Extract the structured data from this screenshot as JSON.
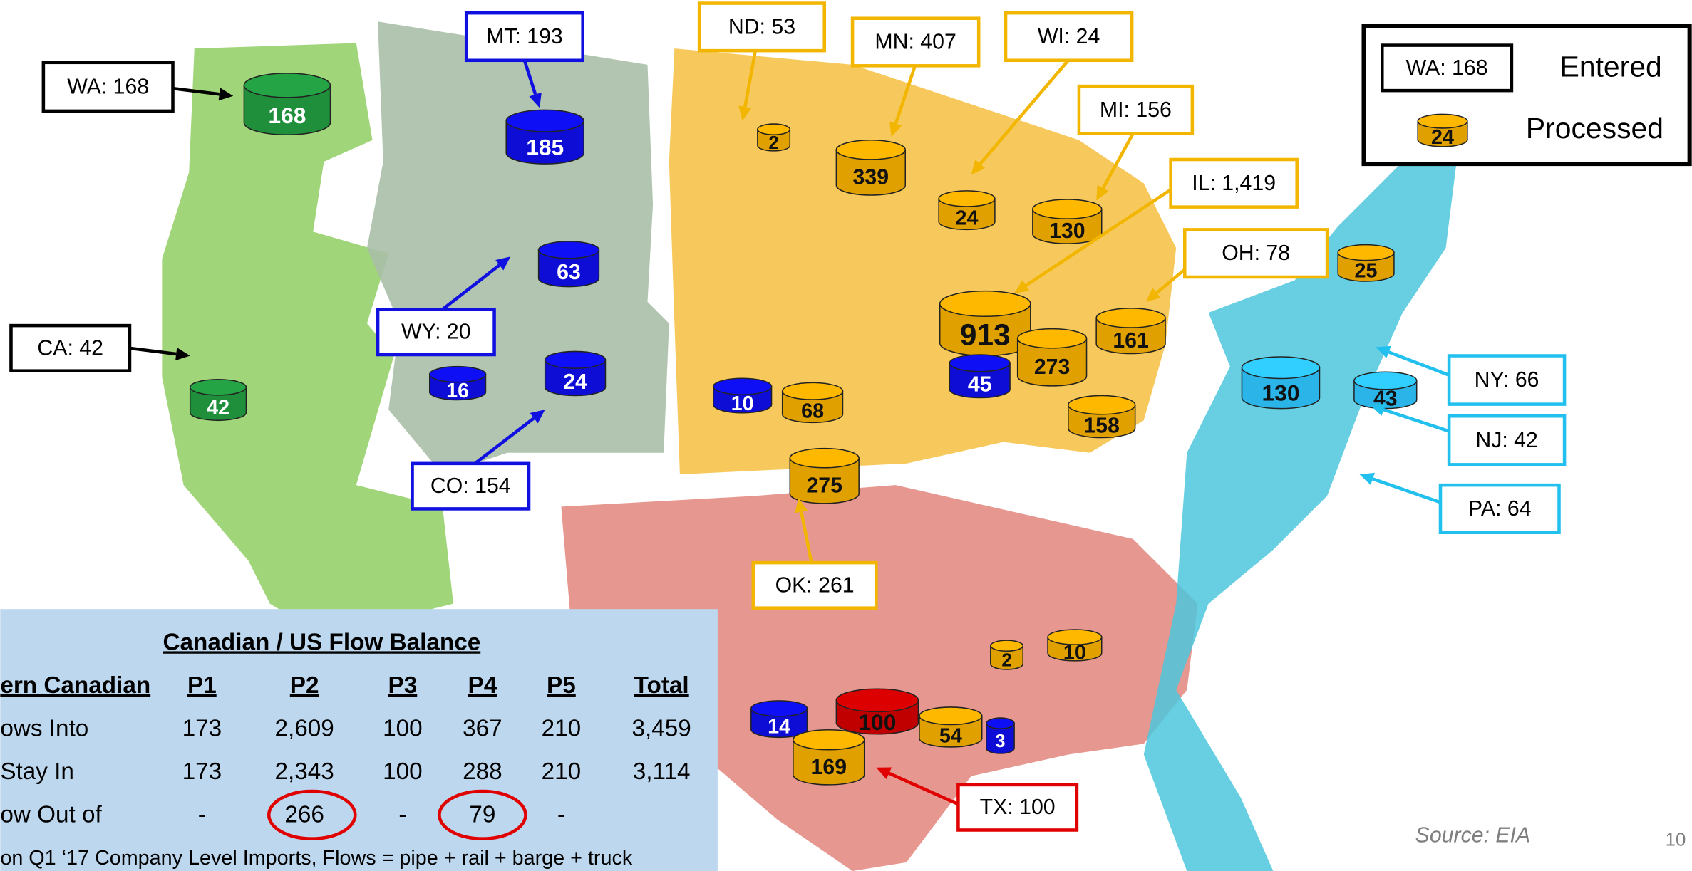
{
  "callouts": [
    {
      "text": "WA: 168",
      "color": "#000000"
    },
    {
      "text": "MT: 193",
      "color": "#1010e0"
    },
    {
      "text": "ND: 53",
      "color": "#f2b600"
    },
    {
      "text": "MN: 407",
      "color": "#f2b600"
    },
    {
      "text": "WI: 24",
      "color": "#f2b600"
    },
    {
      "text": "MI: 156",
      "color": "#f2b600"
    },
    {
      "text": "IL: 1,419",
      "color": "#f2b600"
    },
    {
      "text": "OH: 78",
      "color": "#f2b600"
    },
    {
      "text": "WY: 20",
      "color": "#1010e0"
    },
    {
      "text": "CA: 42",
      "color": "#000000"
    },
    {
      "text": "CO: 154",
      "color": "#1010e0"
    },
    {
      "text": "OK: 261",
      "color": "#f2b600"
    },
    {
      "text": "TX: 100",
      "color": "#e00000"
    },
    {
      "text": "NY: 66",
      "color": "#22c0ee"
    },
    {
      "text": "NJ: 42",
      "color": "#22c0ee"
    },
    {
      "text": "PA: 64",
      "color": "#22c0ee"
    }
  ],
  "cylinders": [
    {
      "label": "168",
      "color": "#1f8f3c"
    },
    {
      "label": "42",
      "color": "#1f8f3c"
    },
    {
      "label": "185",
      "color": "#0d0dd6"
    },
    {
      "label": "63",
      "color": "#0d0dd6"
    },
    {
      "label": "16",
      "color": "#0d0dd6"
    },
    {
      "label": "24",
      "color": "#0d0dd6"
    },
    {
      "label": "10",
      "color": "#0d0dd6"
    },
    {
      "label": "2",
      "color": "#e0a000"
    },
    {
      "label": "339",
      "color": "#e0a000"
    },
    {
      "label": "24",
      "color": "#e0a000"
    },
    {
      "label": "130",
      "color": "#e0a000"
    },
    {
      "label": "913",
      "color": "#e0a000"
    },
    {
      "label": "273",
      "color": "#e0a000"
    },
    {
      "label": "161",
      "color": "#e0a000"
    },
    {
      "label": "45",
      "color": "#0d0dd6"
    },
    {
      "label": "158",
      "color": "#e0a000"
    },
    {
      "label": "68",
      "color": "#e0a000"
    },
    {
      "label": "275",
      "color": "#e0a000"
    },
    {
      "label": "25",
      "color": "#e0a000"
    },
    {
      "label": "130",
      "color": "#2ab4e8"
    },
    {
      "label": "43",
      "color": "#2ab4e8"
    },
    {
      "label": "2",
      "color": "#e0a000"
    },
    {
      "label": "10",
      "color": "#e0a000"
    },
    {
      "label": "14",
      "color": "#0d0dd6"
    },
    {
      "label": "100",
      "color": "#c00000"
    },
    {
      "label": "169",
      "color": "#e0a000"
    },
    {
      "label": "54",
      "color": "#e0a000"
    },
    {
      "label": "3",
      "color": "#0d0dd6"
    }
  ],
  "legend": {
    "entered_sample": "WA: 168",
    "entered": "Entered",
    "processed_sample": "24",
    "processed_color": "#e0a000",
    "processed": "Processed"
  },
  "table": {
    "title": "Canadian / US Flow Balance",
    "header": [
      "ern Canadian",
      "P1",
      "P2",
      "P3",
      "P4",
      "P5",
      "Total"
    ],
    "rows": [
      [
        "ows Into",
        "173",
        "2,609",
        "100",
        "367",
        "210",
        "3,459"
      ],
      [
        "Stay In",
        "173",
        "2,343",
        "100",
        "288",
        "210",
        "3,114"
      ],
      [
        "ow Out of",
        "-",
        "266",
        "-",
        "79",
        "-"
      ]
    ],
    "footnote": "on Q1 ‘17 Company Level Imports, Flows = pipe + rail + barge + truck"
  },
  "source": "Source: EIA",
  "page_number": "10"
}
